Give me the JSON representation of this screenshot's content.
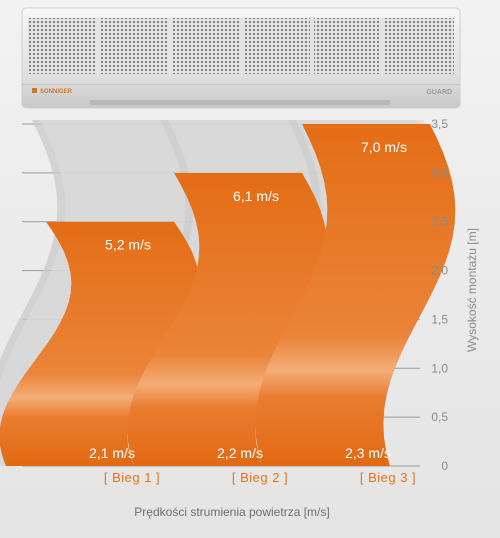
{
  "device": {
    "brand": "SONNIGER",
    "model": "GUARD"
  },
  "chart_data": {
    "type": "area",
    "title": "",
    "xlabel": "Prędkości strumienia powietrza [m/s]",
    "ylabel": "Wysokość montażu [m]",
    "ylim": [
      0,
      3.5
    ],
    "y_ticks": [
      "0",
      "0,5",
      "1,0",
      "1,5",
      "2,0",
      "2,5",
      "3,0",
      "3,5"
    ],
    "grid": true,
    "categories": [
      "[  Bieg 1  ]",
      "[  Bieg 2  ]",
      "[  Bieg 3  ]"
    ],
    "series": [
      {
        "height": 2.5,
        "velocity_top": "5,2 m/s",
        "velocity_bottom": "2,1 m/s"
      },
      {
        "height": 3.0,
        "velocity_top": "6,1 m/s",
        "velocity_bottom": "2,2 m/s"
      },
      {
        "height": 3.5,
        "velocity_top": "7,0 m/s",
        "velocity_bottom": "2,3 m/s"
      }
    ]
  },
  "colors": {
    "stream": "#e5701a",
    "stream_highlight": "#f4b07a",
    "shadow": "#c9c9c9",
    "grid": "#9a9a9a",
    "category": "#e8731c"
  }
}
